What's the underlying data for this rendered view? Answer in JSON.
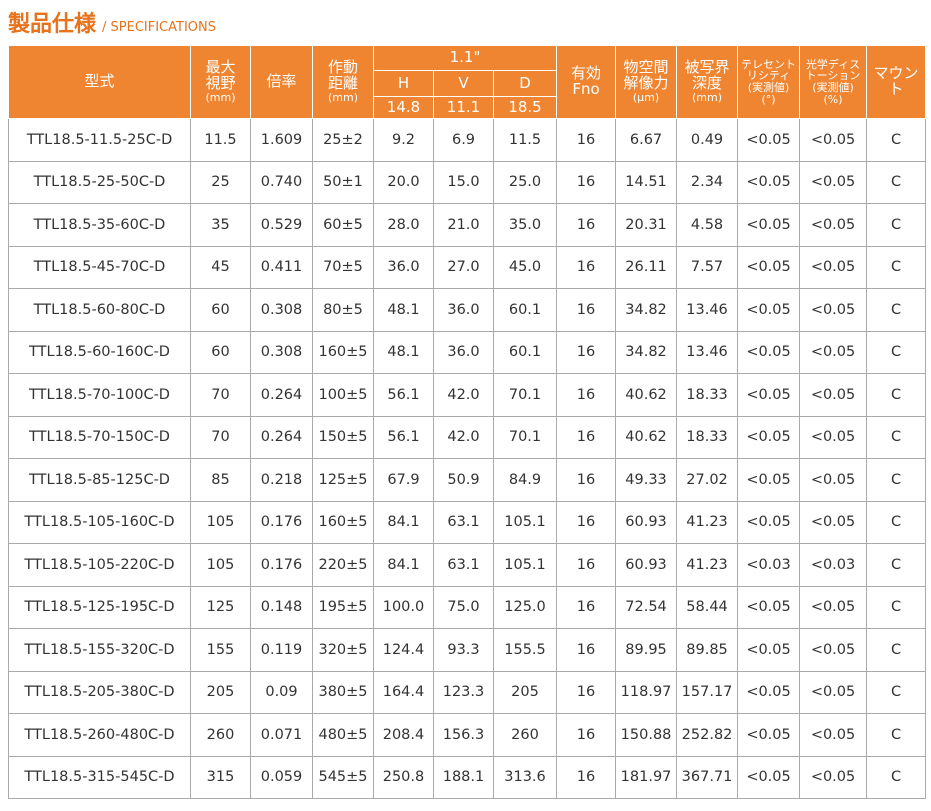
{
  "header": {
    "title": "製品仕様",
    "subtitle": "/ SPECIFICATIONS"
  },
  "table": {
    "columns_left": [
      [
        "型式"
      ],
      [
        "最大",
        "視野",
        "(mm)"
      ],
      [
        "倍率"
      ],
      [
        "作動",
        "距離",
        "(mm)"
      ]
    ],
    "sensor": "1.1\"",
    "sensor_columns": [
      {
        "label": "H",
        "size": "14.8"
      },
      {
        "label": "V",
        "size": "11.1"
      },
      {
        "label": "D",
        "size": "18.5"
      }
    ],
    "columns_right": [
      [
        "有効",
        "Fno"
      ],
      [
        "物空間",
        "解像力",
        "(μm)"
      ],
      [
        "被写界",
        "深度",
        "(mm)"
      ],
      [
        "テレセント",
        "リシティ",
        "(実測値)",
        "(°)"
      ],
      [
        "光学ディス",
        "トーション",
        "(実測値)",
        "(%)"
      ],
      [
        "マウント"
      ]
    ],
    "rows": [
      [
        "TTL18.5-11.5-25C-D",
        "11.5",
        "1.609",
        "25±2",
        "9.2",
        "6.9",
        "11.5",
        "16",
        "6.67",
        "0.49",
        "<0.05",
        "<0.05",
        "C"
      ],
      [
        "TTL18.5-25-50C-D",
        "25",
        "0.740",
        "50±1",
        "20.0",
        "15.0",
        "25.0",
        "16",
        "14.51",
        "2.34",
        "<0.05",
        "<0.05",
        "C"
      ],
      [
        "TTL18.5-35-60C-D",
        "35",
        "0.529",
        "60±5",
        "28.0",
        "21.0",
        "35.0",
        "16",
        "20.31",
        "4.58",
        "<0.05",
        "<0.05",
        "C"
      ],
      [
        "TTL18.5-45-70C-D",
        "45",
        "0.411",
        "70±5",
        "36.0",
        "27.0",
        "45.0",
        "16",
        "26.11",
        "7.57",
        "<0.05",
        "<0.05",
        "C"
      ],
      [
        "TTL18.5-60-80C-D",
        "60",
        "0.308",
        "80±5",
        "48.1",
        "36.0",
        "60.1",
        "16",
        "34.82",
        "13.46",
        "<0.05",
        "<0.05",
        "C"
      ],
      [
        "TTL18.5-60-160C-D",
        "60",
        "0.308",
        "160±5",
        "48.1",
        "36.0",
        "60.1",
        "16",
        "34.82",
        "13.46",
        "<0.05",
        "<0.05",
        "C"
      ],
      [
        "TTL18.5-70-100C-D",
        "70",
        "0.264",
        "100±5",
        "56.1",
        "42.0",
        "70.1",
        "16",
        "40.62",
        "18.33",
        "<0.05",
        "<0.05",
        "C"
      ],
      [
        "TTL18.5-70-150C-D",
        "70",
        "0.264",
        "150±5",
        "56.1",
        "42.0",
        "70.1",
        "16",
        "40.62",
        "18.33",
        "<0.05",
        "<0.05",
        "C"
      ],
      [
        "TTL18.5-85-125C-D",
        "85",
        "0.218",
        "125±5",
        "67.9",
        "50.9",
        "84.9",
        "16",
        "49.33",
        "27.02",
        "<0.05",
        "<0.05",
        "C"
      ],
      [
        "TTL18.5-105-160C-D",
        "105",
        "0.176",
        "160±5",
        "84.1",
        "63.1",
        "105.1",
        "16",
        "60.93",
        "41.23",
        "<0.05",
        "<0.05",
        "C"
      ],
      [
        "TTL18.5-105-220C-D",
        "105",
        "0.176",
        "220±5",
        "84.1",
        "63.1",
        "105.1",
        "16",
        "60.93",
        "41.23",
        "<0.03",
        "<0.03",
        "C"
      ],
      [
        "TTL18.5-125-195C-D",
        "125",
        "0.148",
        "195±5",
        "100.0",
        "75.0",
        "125.0",
        "16",
        "72.54",
        "58.44",
        "<0.05",
        "<0.05",
        "C"
      ],
      [
        "TTL18.5-155-320C-D",
        "155",
        "0.119",
        "320±5",
        "124.4",
        "93.3",
        "155.5",
        "16",
        "89.95",
        "89.85",
        "<0.05",
        "<0.05",
        "C"
      ],
      [
        "TTL18.5-205-380C-D",
        "205",
        "0.09",
        "380±5",
        "164.4",
        "123.3",
        "205",
        "16",
        "118.97",
        "157.17",
        "<0.05",
        "<0.05",
        "C"
      ],
      [
        "TTL18.5-260-480C-D",
        "260",
        "0.071",
        "480±5",
        "208.4",
        "156.3",
        "260",
        "16",
        "150.88",
        "252.82",
        "<0.05",
        "<0.05",
        "C"
      ],
      [
        "TTL18.5-315-545C-D",
        "315",
        "0.059",
        "545±5",
        "250.8",
        "188.1",
        "313.6",
        "16",
        "181.97",
        "367.71",
        "<0.05",
        "<0.05",
        "C"
      ]
    ]
  }
}
